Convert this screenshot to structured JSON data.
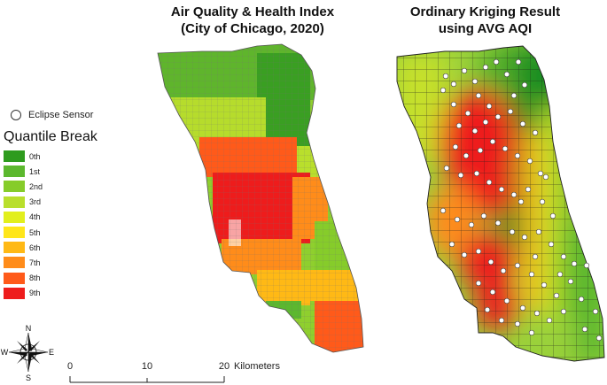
{
  "titles": {
    "left_line1": "Air Quality & Health Index",
    "left_line2": "(City of Chicago, 2020)",
    "right_line1": "Ordinary Kriging Result",
    "right_line2": "using AVG AQI"
  },
  "legend": {
    "sensor_label": "Eclipse Sensor",
    "title": "Quantile Break",
    "items": [
      {
        "label": "0th",
        "color": "#2e9b1e"
      },
      {
        "label": "1st",
        "color": "#5cb82e"
      },
      {
        "label": "2nd",
        "color": "#86cc2a"
      },
      {
        "label": "3rd",
        "color": "#b9df2c"
      },
      {
        "label": "4th",
        "color": "#e2ef1c"
      },
      {
        "label": "5th",
        "color": "#ffe61a"
      },
      {
        "label": "6th",
        "color": "#ffb915"
      },
      {
        "label": "7th",
        "color": "#ff8c1a"
      },
      {
        "label": "8th",
        "color": "#ff5a1a"
      },
      {
        "label": "9th",
        "color": "#ee1c1c"
      }
    ]
  },
  "compass": {
    "n": "N",
    "s": "S",
    "e": "E",
    "w": "W"
  },
  "scale_bar": {
    "ticks": [
      "0",
      "10",
      "20"
    ],
    "unit": "Kilometers"
  }
}
